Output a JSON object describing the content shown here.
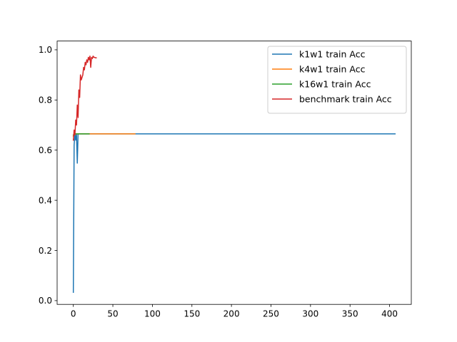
{
  "chart_data": {
    "type": "line",
    "title": "",
    "xlabel": "",
    "ylabel": "",
    "xlim": [
      -20.5,
      427.5
    ],
    "ylim": [
      -0.015,
      1.035
    ],
    "xticks": [
      0,
      50,
      100,
      150,
      200,
      250,
      300,
      350,
      400
    ],
    "yticks": [
      0.0,
      0.2,
      0.4,
      0.6,
      0.8,
      1.0
    ],
    "xtick_labels": [
      "0",
      "50",
      "100",
      "150",
      "200",
      "250",
      "300",
      "350",
      "400"
    ],
    "ytick_labels": [
      "0.0",
      "0.2",
      "0.4",
      "0.6",
      "0.8",
      "1.0"
    ],
    "grid": false,
    "legend_position": "top-right",
    "series": [
      {
        "name": "k1w1 train Acc",
        "color": "#1f77b4",
        "x": [
          0,
          1,
          2,
          3,
          4,
          5,
          6,
          8,
          10,
          20,
          50,
          100,
          200,
          300,
          407
        ],
        "y": [
          0.033,
          0.62,
          0.665,
          0.64,
          0.665,
          0.548,
          0.665,
          0.665,
          0.665,
          0.665,
          0.665,
          0.665,
          0.665,
          0.665,
          0.665
        ]
      },
      {
        "name": "k4w1 train Acc",
        "color": "#ff7f0e",
        "x": [
          0,
          1,
          2,
          5,
          10,
          20,
          40,
          60,
          78
        ],
        "y": [
          0.655,
          0.665,
          0.665,
          0.665,
          0.665,
          0.665,
          0.665,
          0.665,
          0.665
        ]
      },
      {
        "name": "k16w1 train Acc",
        "color": "#2ca02c",
        "x": [
          0,
          1,
          2,
          5,
          10,
          15,
          20
        ],
        "y": [
          0.66,
          0.665,
          0.665,
          0.665,
          0.665,
          0.665,
          0.665
        ]
      },
      {
        "name": "benchmark train Acc",
        "color": "#d62728",
        "x": [
          0,
          1,
          2,
          3,
          4,
          5,
          6,
          7,
          8,
          9,
          10,
          11,
          12,
          13,
          14,
          15,
          16,
          17,
          18,
          19,
          20,
          21,
          22,
          23,
          24,
          25,
          26,
          27,
          28,
          29
        ],
        "y": [
          0.64,
          0.68,
          0.66,
          0.72,
          0.7,
          0.78,
          0.73,
          0.84,
          0.81,
          0.9,
          0.88,
          0.89,
          0.9,
          0.93,
          0.92,
          0.95,
          0.94,
          0.96,
          0.95,
          0.97,
          0.96,
          0.975,
          0.93,
          0.97,
          0.965,
          0.975,
          0.97,
          0.97,
          0.968,
          0.968
        ]
      }
    ]
  }
}
